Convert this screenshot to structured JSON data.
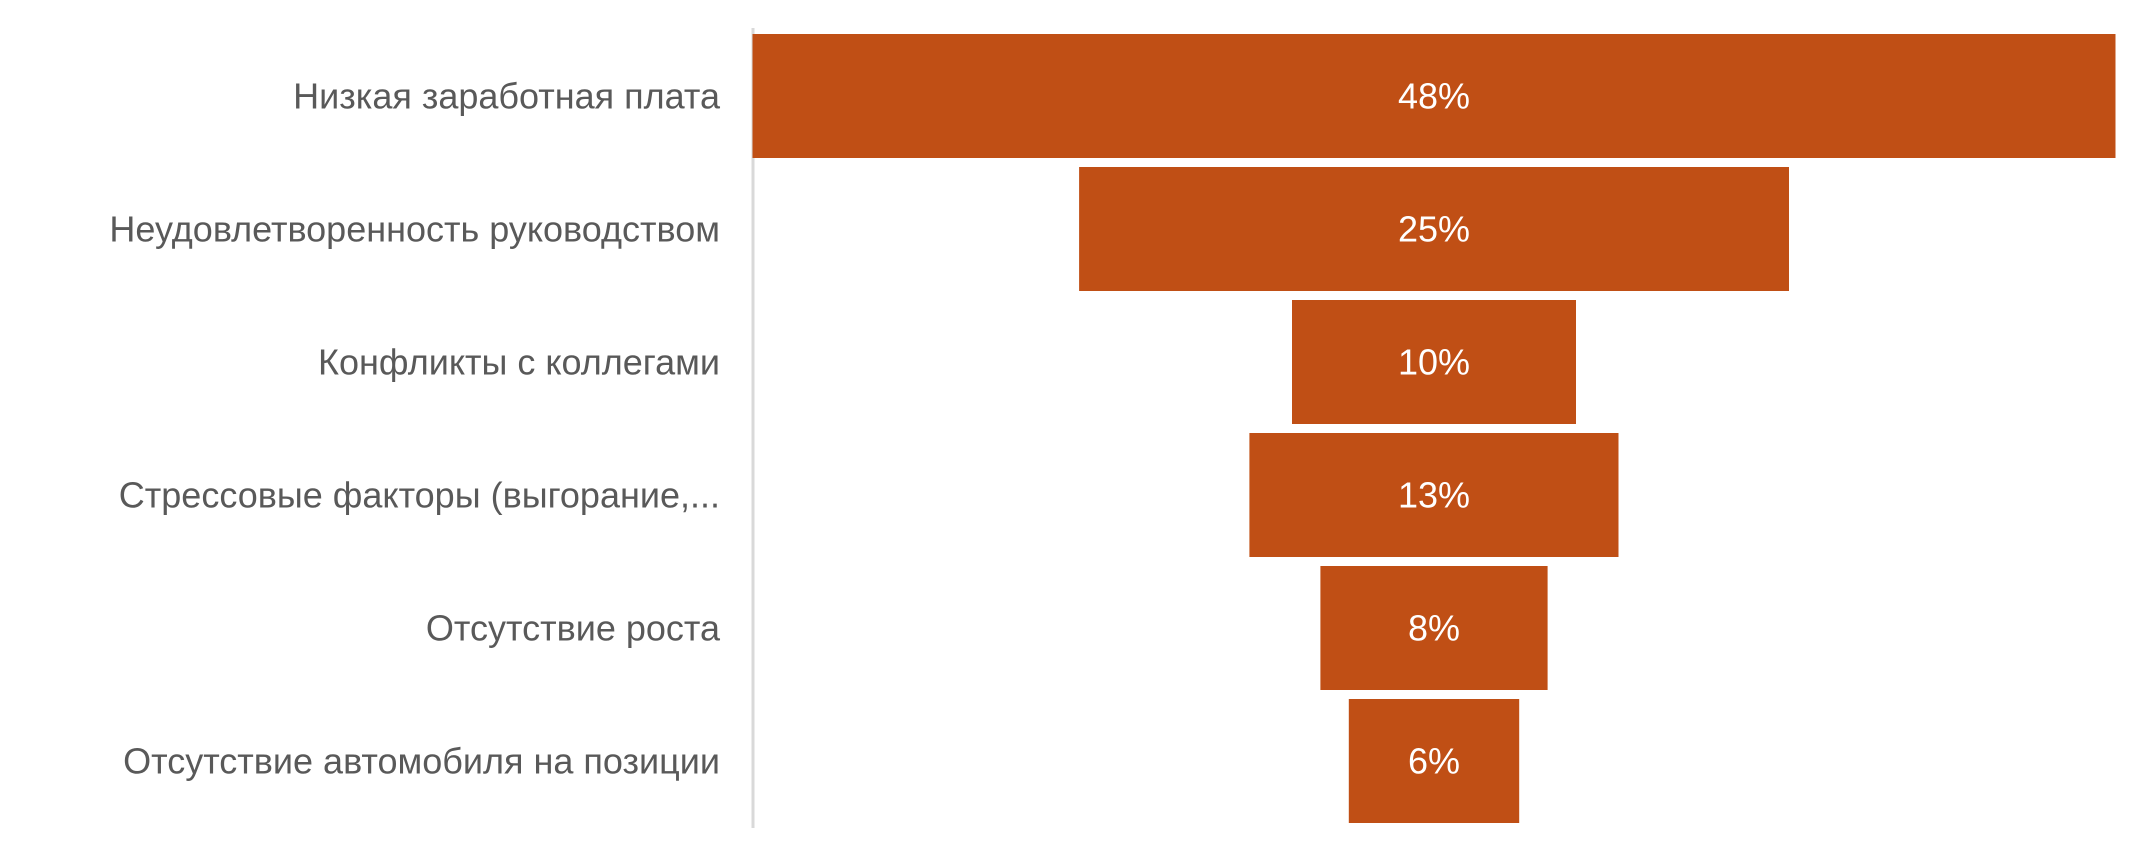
{
  "chart_data": {
    "type": "bar",
    "subtype": "funnel",
    "orientation": "horizontal",
    "categories": [
      "Низкая заработная плата",
      "Неудовлетворенность руководством",
      "Конфликты с коллегами",
      "Стрессовые факторы (выгорание,...",
      "Отсутствие роста",
      "Отсутствие автомобиля на позиции"
    ],
    "values": [
      48,
      25,
      10,
      13,
      8,
      6
    ],
    "data_labels": [
      "48%",
      "25%",
      "10%",
      "13%",
      "8%",
      "6%"
    ],
    "unit": "%",
    "title": "",
    "xlabel": "",
    "ylabel": "",
    "grid": false,
    "legend": "none",
    "colors": {
      "bar": "#C04F15",
      "category_text": "#595959",
      "data_label_text": "#FFFFFF",
      "axis_line": "#D9D9D9"
    }
  }
}
